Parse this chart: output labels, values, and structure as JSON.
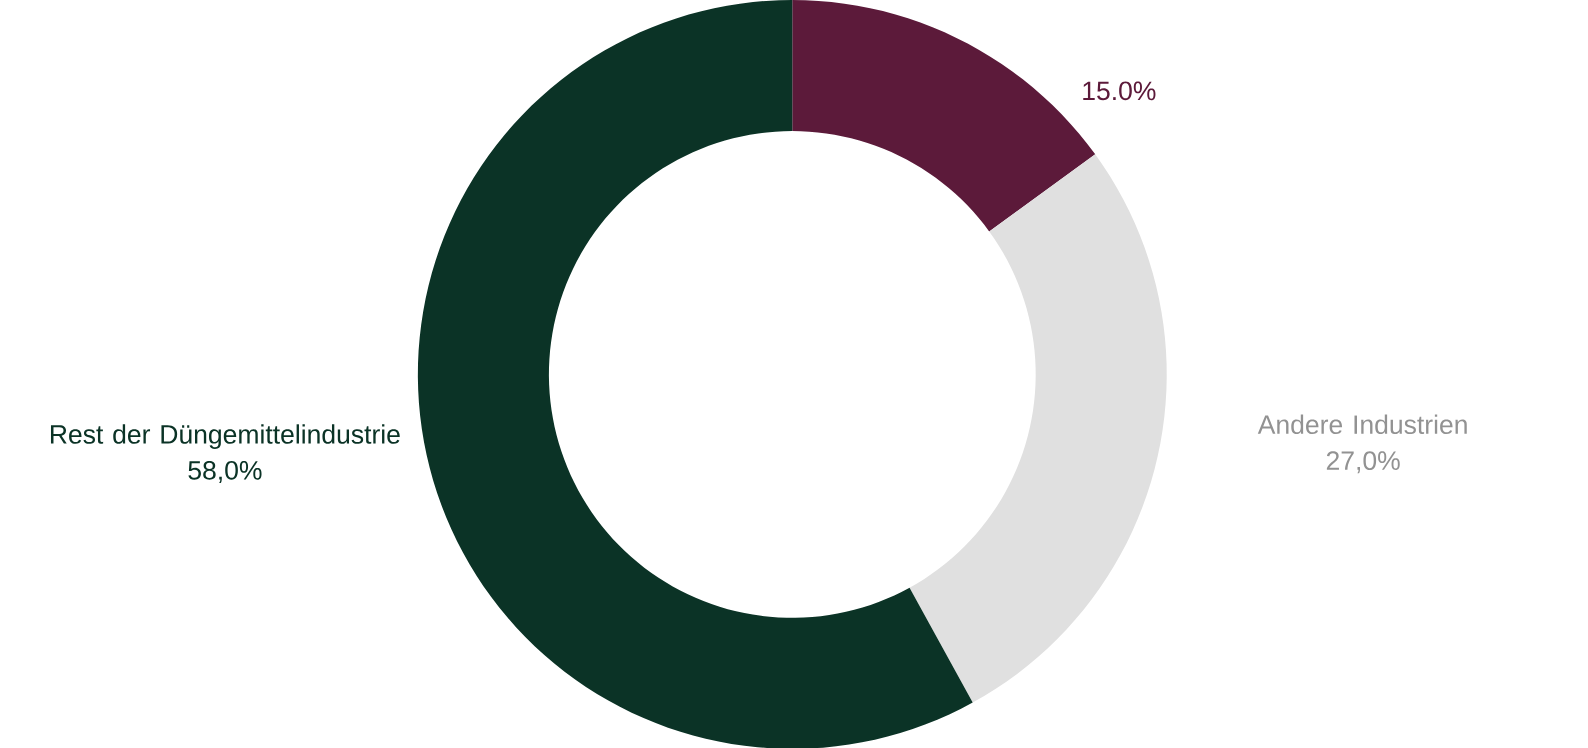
{
  "chart_data": {
    "type": "donut",
    "categories": [
      null,
      "Andere Industrien",
      "Rest der Düngemittelindustrie"
    ],
    "values": [
      15,
      27,
      58
    ],
    "colors": [
      "#5c1a3a",
      "#e0e0e0",
      "#0b3326"
    ],
    "value_labels": [
      "15.0%",
      "27,0%",
      "58,0%"
    ]
  }
}
